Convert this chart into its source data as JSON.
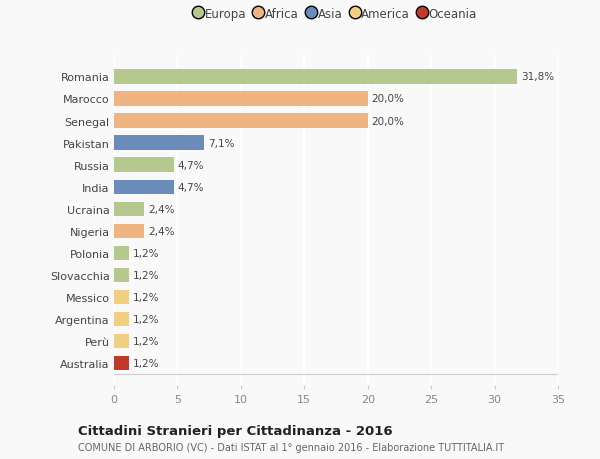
{
  "categories": [
    "Romania",
    "Marocco",
    "Senegal",
    "Pakistan",
    "Russia",
    "India",
    "Ucraina",
    "Nigeria",
    "Polonia",
    "Slovacchia",
    "Messico",
    "Argentina",
    "Perù",
    "Australia"
  ],
  "values": [
    31.8,
    20.0,
    20.0,
    7.1,
    4.7,
    4.7,
    2.4,
    2.4,
    1.2,
    1.2,
    1.2,
    1.2,
    1.2,
    1.2
  ],
  "labels": [
    "31,8%",
    "20,0%",
    "20,0%",
    "7,1%",
    "4,7%",
    "4,7%",
    "2,4%",
    "2,4%",
    "1,2%",
    "1,2%",
    "1,2%",
    "1,2%",
    "1,2%",
    "1,2%"
  ],
  "colors": [
    "#b5c98e",
    "#f0b482",
    "#f0b482",
    "#6b8cba",
    "#b5c98e",
    "#6b8cba",
    "#b5c98e",
    "#f0b482",
    "#b5c98e",
    "#b5c98e",
    "#f0d080",
    "#f0d080",
    "#f0d080",
    "#c0392b"
  ],
  "legend_labels": [
    "Europa",
    "Africa",
    "Asia",
    "America",
    "Oceania"
  ],
  "legend_colors": [
    "#b5c98e",
    "#f0b482",
    "#6b8cba",
    "#f0d080",
    "#c0392b"
  ],
  "title": "Cittadini Stranieri per Cittadinanza - 2016",
  "subtitle": "COMUNE DI ARBORIO (VC) - Dati ISTAT al 1° gennaio 2016 - Elaborazione TUTTITALIA.IT",
  "xlim": [
    0,
    35
  ],
  "xticks": [
    0,
    5,
    10,
    15,
    20,
    25,
    30,
    35
  ],
  "background_color": "#f9f9f9",
  "grid_color": "#ffffff",
  "bar_height": 0.65
}
